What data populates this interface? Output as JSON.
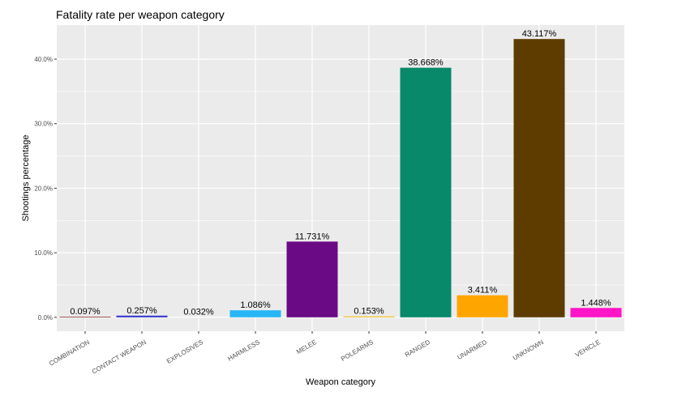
{
  "chart_data": {
    "type": "bar",
    "title": "Fatality rate per weapon category",
    "xlabel": "Weapon category",
    "ylabel": "Shootings percentage",
    "categories": [
      "COMBINATION",
      "CONTACT WEAPON",
      "EXPLOSIVES",
      "HARMLESS",
      "MELEE",
      "POLEARMS",
      "RANGED",
      "UNARMED",
      "UNKNOWN",
      "VEHICLE"
    ],
    "values": [
      0.097,
      0.257,
      0.032,
      1.086,
      11.731,
      0.153,
      38.668,
      3.411,
      43.117,
      1.448
    ],
    "data_labels": [
      "0.097%",
      "0.257%",
      "0.032%",
      "1.086%",
      "11.731%",
      "0.153%",
      "38.668%",
      "3.411%",
      "43.117%",
      "1.448%"
    ],
    "colors": [
      "#8b2b1e",
      "#3333cc",
      "#ffffff",
      "#29b6f6",
      "#6a0a85",
      "#f2c029",
      "#07896a",
      "#ffa500",
      "#5e3c00",
      "#ff14c8"
    ],
    "y_ticks": [
      0,
      10,
      20,
      30,
      40
    ],
    "y_tick_labels": [
      "0.0%",
      "10.0%",
      "20.0%",
      "30.0%",
      "40.0%"
    ],
    "ylim": [
      -2.156,
      45.273
    ],
    "grid": true,
    "legend": "none",
    "panel_background": "#ebebeb",
    "grid_color": "#ffffff"
  }
}
